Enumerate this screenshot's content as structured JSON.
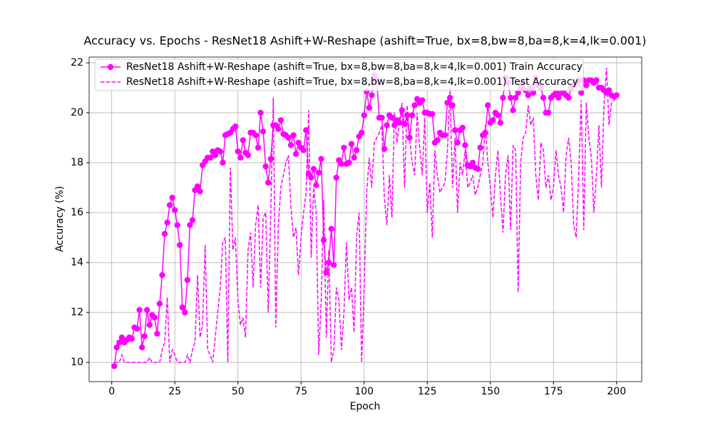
{
  "chart_data": {
    "type": "line",
    "title": "Accuracy vs. Epochs - ResNet18 Ashift+W-Reshape (ashift=True, bx=8,bw=8,ba=8,k=4,lk=0.001)",
    "x_label": "Epoch",
    "y_label": "Accuracy (%)",
    "x": [
      1,
      2,
      3,
      4,
      5,
      6,
      7,
      8,
      9,
      10,
      11,
      12,
      13,
      14,
      15,
      16,
      17,
      18,
      19,
      20,
      21,
      22,
      23,
      24,
      25,
      26,
      27,
      28,
      29,
      30,
      31,
      32,
      33,
      34,
      35,
      36,
      37,
      38,
      39,
      40,
      41,
      42,
      43,
      44,
      45,
      46,
      47,
      48,
      49,
      50,
      51,
      52,
      53,
      54,
      55,
      56,
      57,
      58,
      59,
      60,
      61,
      62,
      63,
      64,
      65,
      66,
      67,
      68,
      69,
      70,
      71,
      72,
      73,
      74,
      75,
      76,
      77,
      78,
      79,
      80,
      81,
      82,
      83,
      84,
      85,
      86,
      87,
      88,
      89,
      90,
      91,
      92,
      93,
      94,
      95,
      96,
      97,
      98,
      99,
      100,
      101,
      102,
      103,
      104,
      105,
      106,
      107,
      108,
      109,
      110,
      111,
      112,
      113,
      114,
      115,
      116,
      117,
      118,
      119,
      120,
      121,
      122,
      123,
      124,
      125,
      126,
      127,
      128,
      129,
      130,
      131,
      132,
      133,
      134,
      135,
      136,
      137,
      138,
      139,
      140,
      141,
      142,
      143,
      144,
      145,
      146,
      147,
      148,
      149,
      150,
      151,
      152,
      153,
      154,
      155,
      156,
      157,
      158,
      159,
      160,
      161,
      162,
      163,
      164,
      165,
      166,
      167,
      168,
      169,
      170,
      171,
      172,
      173,
      174,
      175,
      176,
      177,
      178,
      179,
      180,
      181,
      182,
      183,
      184,
      185,
      186,
      187,
      188,
      189,
      190,
      191,
      192,
      193,
      194,
      195,
      196,
      197,
      198,
      199,
      200
    ],
    "series": [
      {
        "name": "ResNet18 Ashift+W-Reshape (ashift=True, bx=8,bw=8,ba=8,k=4,lk=0.001) Train Accuracy",
        "color": "#ff00ff",
        "style": "solid-marker",
        "values": [
          9.85,
          10.6,
          10.8,
          11.0,
          10.8,
          10.9,
          11.0,
          10.95,
          11.4,
          11.35,
          12.1,
          10.6,
          11.05,
          12.1,
          11.5,
          11.9,
          11.8,
          11.15,
          12.35,
          13.5,
          15.15,
          15.6,
          16.3,
          16.6,
          16.1,
          15.5,
          14.7,
          12.2,
          12.0,
          13.3,
          15.5,
          15.7,
          16.9,
          17.05,
          16.85,
          17.9,
          18.05,
          18.2,
          18.2,
          18.45,
          18.3,
          18.5,
          18.45,
          18.0,
          19.1,
          19.15,
          19.2,
          19.35,
          19.45,
          18.45,
          18.2,
          18.9,
          18.4,
          18.3,
          19.2,
          19.2,
          19.1,
          18.6,
          20.0,
          19.25,
          17.85,
          17.2,
          18.15,
          19.5,
          19.5,
          19.35,
          19.7,
          19.15,
          19.1,
          19.0,
          18.7,
          19.1,
          18.35,
          18.8,
          18.6,
          18.5,
          19.3,
          17.55,
          17.4,
          17.75,
          17.1,
          17.6,
          18.15,
          14.9,
          13.6,
          14.0,
          15.35,
          13.9,
          17.4,
          18.1,
          17.95,
          18.6,
          17.95,
          18.0,
          18.75,
          18.2,
          18.5,
          19.05,
          19.2,
          19.9,
          20.85,
          20.2,
          20.7,
          21.5,
          21.3,
          19.8,
          19.8,
          18.55,
          19.5,
          19.9,
          19.8,
          19.5,
          19.7,
          19.6,
          20.1,
          19.55,
          19.9,
          19.0,
          19.9,
          20.3,
          20.55,
          20.4,
          20.5,
          20.0,
          20.0,
          19.95,
          19.95,
          18.8,
          18.9,
          19.2,
          19.1,
          19.1,
          20.4,
          20.6,
          20.3,
          19.3,
          18.8,
          19.3,
          19.4,
          18.7,
          17.9,
          17.85,
          18.0,
          17.8,
          17.75,
          18.6,
          19.1,
          19.2,
          20.3,
          19.6,
          19.7,
          20.0,
          19.9,
          19.6,
          20.6,
          21.4,
          21.2,
          20.6,
          20.1,
          20.6,
          20.8,
          21.0,
          21.2,
          20.9,
          20.7,
          21.0,
          20.8,
          21.4,
          21.1,
          21.0,
          20.6,
          20.0,
          20.0,
          20.6,
          20.7,
          20.8,
          20.6,
          20.8,
          20.8,
          20.7,
          20.6,
          21.0,
          21.1,
          21.2,
          21.3,
          20.8,
          21.3,
          21.1,
          21.3,
          21.3,
          21.2,
          21.3,
          21.0,
          21.0,
          20.9,
          20.8,
          20.9,
          20.7,
          20.65,
          20.7
        ]
      },
      {
        "name": "ResNet18 Ashift+W-Reshape (ashift=True, bx=8,bw=8,ba=8,k=4,lk=0.001) Test Accuracy",
        "color": "#ff00ff",
        "style": "dashed",
        "values": [
          10.0,
          10.0,
          10.0,
          10.3,
          10.0,
          10.0,
          10.0,
          10.0,
          10.0,
          10.0,
          10.0,
          10.0,
          10.0,
          10.0,
          10.2,
          10.0,
          10.0,
          10.0,
          10.0,
          10.5,
          10.8,
          12.6,
          10.0,
          10.5,
          10.3,
          10.0,
          10.0,
          10.0,
          10.0,
          10.3,
          10.0,
          10.5,
          10.8,
          13.5,
          11.0,
          11.5,
          14.7,
          10.5,
          10.3,
          10.0,
          11.0,
          12.0,
          13.0,
          14.8,
          15.0,
          10.0,
          17.8,
          14.5,
          15.0,
          12.5,
          11.5,
          11.8,
          11.0,
          14.5,
          15.2,
          13.0,
          15.5,
          16.3,
          13.0,
          15.8,
          16.0,
          12.0,
          16.0,
          20.6,
          11.4,
          15.5,
          17.0,
          17.5,
          18.0,
          18.3,
          16.2,
          15.0,
          15.4,
          13.5,
          15.0,
          16.0,
          16.8,
          20.1,
          14.2,
          17.0,
          16.0,
          10.3,
          12.5,
          16.5,
          11.0,
          14.5,
          10.0,
          10.5,
          13.0,
          12.5,
          10.5,
          12.0,
          14.8,
          12.5,
          13.0,
          11.2,
          15.0,
          16.0,
          10.0,
          13.0,
          16.8,
          18.2,
          17.0,
          18.8,
          19.0,
          19.2,
          19.5,
          16.6,
          15.5,
          17.5,
          15.8,
          20.0,
          18.8,
          19.7,
          20.4,
          17.0,
          20.3,
          19.0,
          18.0,
          17.5,
          20.0,
          18.6,
          17.5,
          19.8,
          16.0,
          17.2,
          15.0,
          18.5,
          17.5,
          16.8,
          17.0,
          17.2,
          18.5,
          21.0,
          17.0,
          19.0,
          16.0,
          18.0,
          17.5,
          18.5,
          17.0,
          17.2,
          17.5,
          16.7,
          17.0,
          17.5,
          18.0,
          19.5,
          18.0,
          17.0,
          15.8,
          17.5,
          18.5,
          16.7,
          15.2,
          17.5,
          18.3,
          15.3,
          18.7,
          18.5,
          12.8,
          18.0,
          19.0,
          19.2,
          20.3,
          19.5,
          19.8,
          17.5,
          16.5,
          18.8,
          18.5,
          17.0,
          17.5,
          16.5,
          17.0,
          18.5,
          17.5,
          17.0,
          16.0,
          18.3,
          19.0,
          18.0,
          15.5,
          15.0,
          17.5,
          20.5,
          15.3,
          20.4,
          19.0,
          18.2,
          16.0,
          17.5,
          19.5,
          17.0,
          20.3,
          21.8,
          19.5,
          20.4,
          20.5,
          20.6
        ]
      }
    ],
    "xlim": [
      -8.95,
      209.95
    ],
    "ylim": [
      9.23,
      22.23
    ],
    "xticks": [
      0,
      25,
      50,
      75,
      100,
      125,
      150,
      175,
      200
    ],
    "yticks": [
      10,
      12,
      14,
      16,
      18,
      20,
      22
    ],
    "grid": true,
    "legend": "upper left"
  }
}
